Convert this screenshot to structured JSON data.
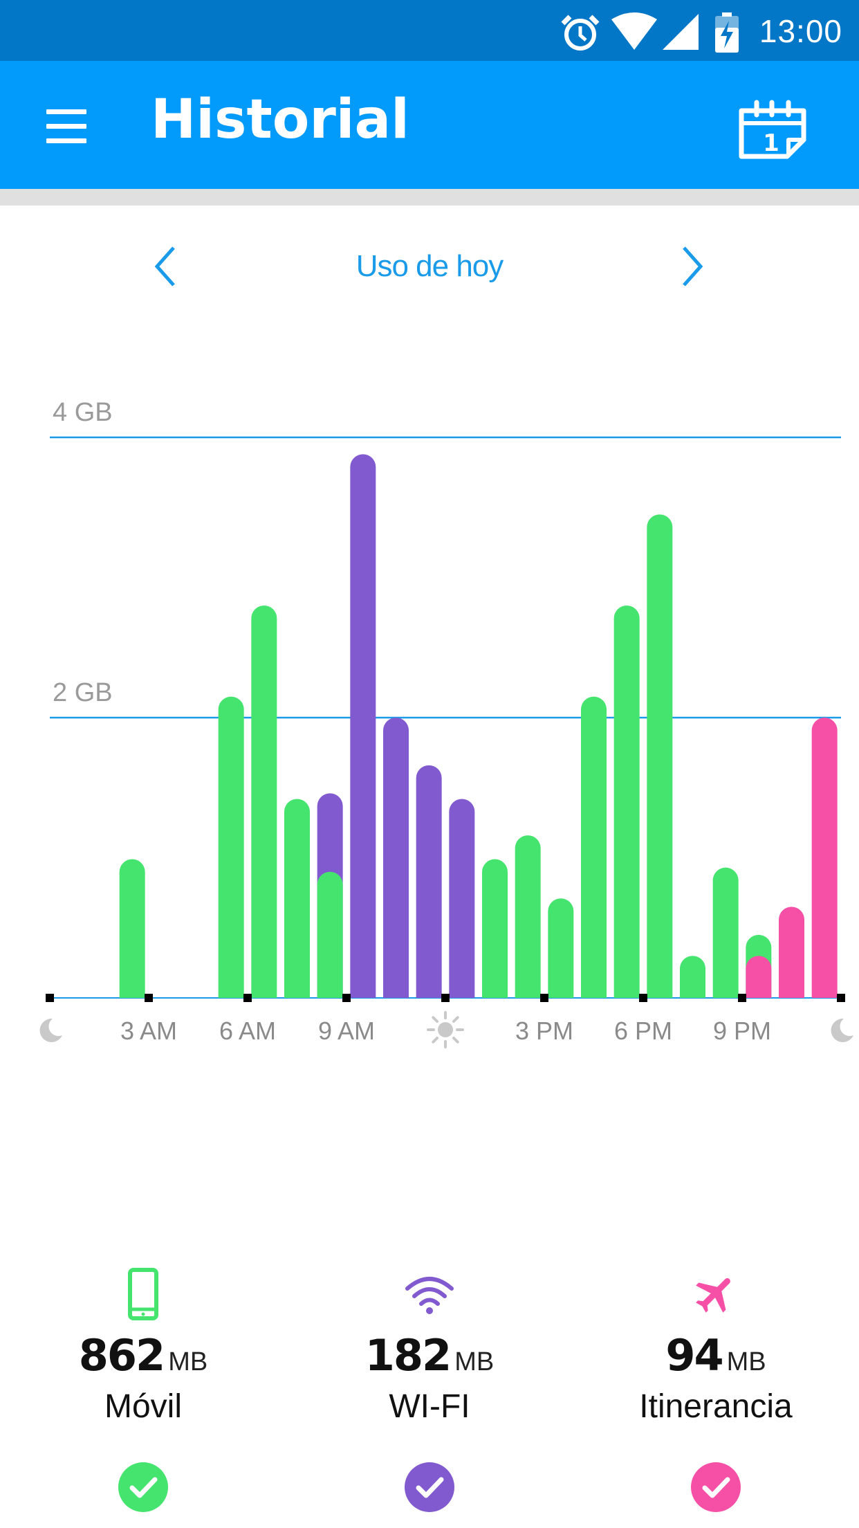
{
  "status_bar": {
    "time": "13:00",
    "icons": [
      "alarm-icon",
      "wifi-icon",
      "cell-signal-icon",
      "battery-charging-icon"
    ]
  },
  "app_bar": {
    "title": "Historial",
    "menu_icon": "hamburger-menu-icon",
    "action_icon": "calendar-icon",
    "calendar_day": "1",
    "background": "#039bfb"
  },
  "navigation": {
    "period_label": "Uso de hoy",
    "prev_icon": "chevron-left-icon",
    "next_icon": "chevron-right-icon"
  },
  "colors": {
    "movil": "#45e46e",
    "wifi": "#825ad0",
    "itinerancia": "#f550a6",
    "gridline": "#1a9bea",
    "accent": "#1a9bea"
  },
  "chart_data": {
    "type": "bar",
    "stacked": true,
    "y_unit": "GB",
    "ylim": [
      0,
      4
    ],
    "y_ticks": [
      {
        "value": 2,
        "label": "2 GB"
      },
      {
        "value": 4,
        "label": "4 GB"
      }
    ],
    "x_ticks": [
      "moon-icon",
      "3 AM",
      "6 AM",
      "9 AM",
      "sun-icon",
      "3 PM",
      "6 PM",
      "9 PM",
      "moon-icon"
    ],
    "hours": [
      0,
      1,
      2,
      3,
      4,
      5,
      6,
      7,
      8,
      9,
      10,
      11,
      12,
      13,
      14,
      15,
      16,
      17,
      18,
      19,
      20,
      21,
      22,
      23
    ],
    "series": [
      {
        "key": "movil",
        "values": [
          0,
          0,
          0.99,
          0,
          0,
          2.15,
          2.8,
          1.42,
          0.9,
          0,
          0,
          0,
          0,
          0.99,
          1.16,
          0.71,
          2.15,
          2.8,
          3.45,
          0.3,
          0.93,
          0.45,
          0,
          0
        ]
      },
      {
        "key": "wifi",
        "values": [
          0,
          0,
          0,
          0,
          0,
          0,
          0,
          0,
          1.46,
          3.88,
          2.0,
          1.66,
          1.42,
          0,
          0,
          0,
          0,
          0,
          0,
          0,
          0,
          0,
          0,
          0
        ]
      },
      {
        "key": "itinerancia",
        "values": [
          0,
          0,
          0,
          0,
          0,
          0,
          0,
          0,
          0,
          0,
          0,
          0,
          0,
          0,
          0,
          0,
          0,
          0,
          0,
          0,
          0,
          0.3,
          0.65,
          2.0
        ]
      }
    ]
  },
  "summary": [
    {
      "key": "movil",
      "icon": "phone-icon",
      "value": "862",
      "unit": "MB",
      "label": "Móvil",
      "check_icon": "check-icon"
    },
    {
      "key": "wifi",
      "icon": "wifi-icon",
      "value": "182",
      "unit": "MB",
      "label": "WI-FI",
      "check_icon": "check-icon"
    },
    {
      "key": "itinerancia",
      "icon": "airplane-icon",
      "value": "94",
      "unit": "MB",
      "label": "Itinerancia",
      "check_icon": "check-icon"
    }
  ]
}
